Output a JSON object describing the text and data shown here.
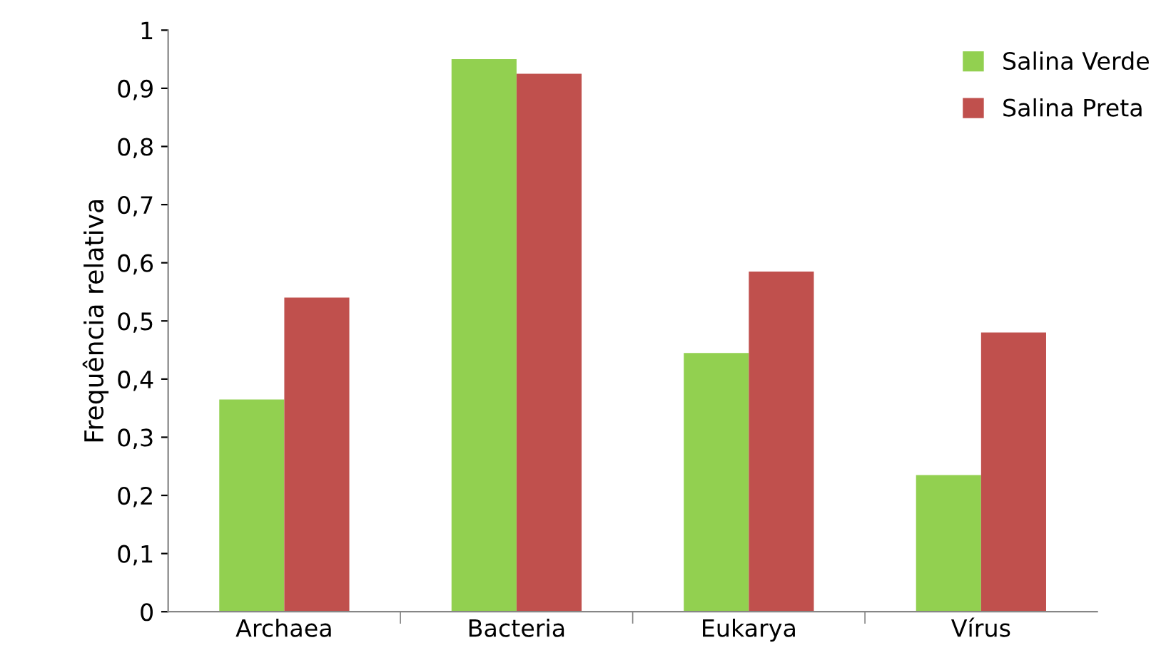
{
  "chart_data": {
    "type": "bar",
    "ylabel": "Frequência relativa",
    "categories": [
      "Archaea",
      "Bacteria",
      "Eukarya",
      "Vírus"
    ],
    "series": [
      {
        "name": "Salina Verde",
        "color": "#92d050",
        "values": [
          0.365,
          0.95,
          0.445,
          0.235
        ]
      },
      {
        "name": "Salina Preta",
        "color": "#c0504d",
        "values": [
          0.54,
          0.925,
          0.585,
          0.48
        ]
      }
    ],
    "ylim": [
      0,
      1
    ],
    "yticks": [
      0,
      {
        "value": 0.1,
        "label": "0,1"
      },
      {
        "value": 0.2,
        "label": "0,2"
      },
      {
        "value": 0.3,
        "label": "0,3"
      },
      {
        "value": 0.4,
        "label": "0,4"
      },
      {
        "value": 0.5,
        "label": "0,5"
      },
      {
        "value": 0.6,
        "label": "0,6"
      },
      {
        "value": 0.7,
        "label": "0,7"
      },
      {
        "value": 0.8,
        "label": "0,8"
      },
      {
        "value": 0.9,
        "label": "0,9"
      },
      1
    ],
    "grid": false,
    "legend": "top right"
  }
}
